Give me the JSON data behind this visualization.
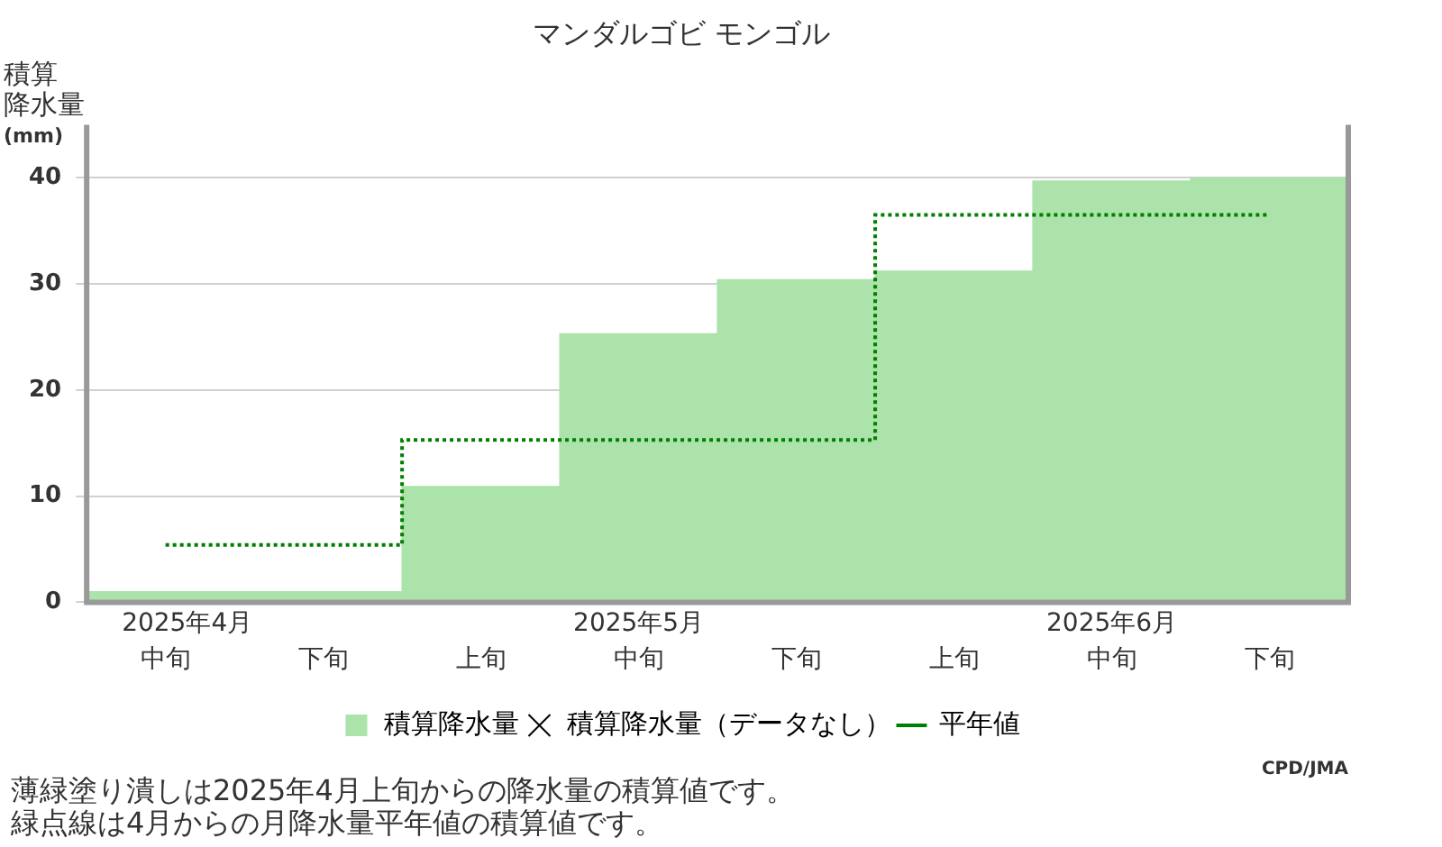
{
  "chart_data": {
    "type": "bar",
    "title": "マンダルゴビ モンゴル",
    "ylabel": "積算降水量(mm)",
    "categories": [
      "中旬",
      "下旬",
      "上旬",
      "中旬",
      "下旬",
      "上旬",
      "中旬",
      "下旬"
    ],
    "series": [
      {
        "name": "積算降水量",
        "color": "#abe3aa",
        "values": [
          1.0,
          1.0,
          10.9,
          25.3,
          30.4,
          31.2,
          39.7,
          40.0
        ]
      },
      {
        "name": "積算降水量（データなし）",
        "type": "scatter",
        "marker": "cross",
        "color": "#000000",
        "values": [
          null,
          null,
          null,
          null,
          null,
          null,
          null,
          null
        ]
      },
      {
        "name": "平年値",
        "type": "step",
        "line_style": "dotted",
        "color": "#008000",
        "values": [
          5.4,
          5.4,
          15.3,
          15.3,
          15.3,
          36.5,
          36.5,
          36.5
        ]
      }
    ],
    "ylim": [
      0,
      45
    ],
    "yticks": [
      0,
      10,
      20,
      30,
      40
    ],
    "grid": "y",
    "legend": "bottom",
    "annotations": [
      "2025年4月",
      "2025年5月",
      "2025年6月",
      "CPD/JMA",
      "薄緑塗り潰しは2025年4月上旬からの降水量の積算値です。",
      "緑点線は4月からの月降水量平年値の積算値です。"
    ]
  }
}
